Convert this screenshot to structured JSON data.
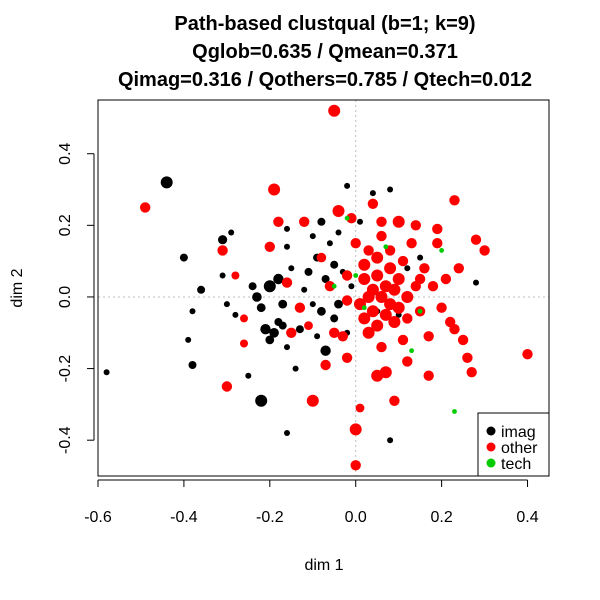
{
  "chart_data": {
    "type": "scatter",
    "title_lines": [
      "Path-based clustqual (b=1; k=9)",
      "Qglob=0.635 / Qmean=0.371",
      "Qimag=0.316 / Qothers=0.785 / Qtech=0.012"
    ],
    "xlabel": "dim 1",
    "ylabel": "dim 2",
    "xlim": [
      -0.6,
      0.45
    ],
    "ylim": [
      -0.5,
      0.55
    ],
    "x_ticks": [
      -0.6,
      -0.4,
      -0.2,
      0.0,
      0.2,
      0.4
    ],
    "x_tick_labels": [
      "-0.6",
      "-0.4",
      "-0.2",
      "0.0",
      "0.2",
      "0.4"
    ],
    "y_ticks": [
      -0.4,
      -0.2,
      0.0,
      0.2,
      0.4
    ],
    "y_tick_labels": [
      "-0.4",
      "-0.2",
      "0.0",
      "0.2",
      "0.4"
    ],
    "reference_lines": {
      "x": 0,
      "y": 0,
      "style": "dotted",
      "color": "#bdbdbd"
    },
    "legend_position": "bottom-right",
    "series": [
      {
        "name": "imag",
        "color": "#000000",
        "points": [
          [
            -0.44,
            0.32,
            3
          ],
          [
            -0.58,
            -0.21,
            1.5
          ],
          [
            -0.4,
            0.11,
            2
          ],
          [
            -0.38,
            -0.04,
            1.5
          ],
          [
            -0.36,
            0.02,
            2
          ],
          [
            -0.39,
            -0.12,
            1.5
          ],
          [
            -0.38,
            -0.19,
            2
          ],
          [
            -0.31,
            0.16,
            2.3
          ],
          [
            -0.29,
            0.18,
            1.5
          ],
          [
            -0.31,
            0.06,
            1.5
          ],
          [
            -0.3,
            -0.02,
            1.5
          ],
          [
            -0.28,
            -0.05,
            1.5
          ],
          [
            -0.25,
            -0.22,
            1.5
          ],
          [
            -0.24,
            0.03,
            2
          ],
          [
            -0.23,
            0.0,
            2.4
          ],
          [
            -0.22,
            -0.03,
            2.2
          ],
          [
            -0.21,
            -0.09,
            2.6
          ],
          [
            -0.2,
            -0.12,
            2.2
          ],
          [
            -0.2,
            0.03,
            3
          ],
          [
            -0.19,
            -0.1,
            2.4
          ],
          [
            -0.18,
            -0.07,
            2
          ],
          [
            -0.18,
            0.05,
            2.6
          ],
          [
            -0.17,
            -0.08,
            2
          ],
          [
            -0.17,
            -0.02,
            2.2
          ],
          [
            -0.16,
            -0.14,
            1.5
          ],
          [
            -0.16,
            0.19,
            1.5
          ],
          [
            -0.15,
            0.08,
            1.5
          ],
          [
            -0.14,
            -0.2,
            1.5
          ],
          [
            -0.13,
            -0.09,
            2
          ],
          [
            -0.12,
            0.02,
            1.5
          ],
          [
            -0.11,
            0.07,
            2
          ],
          [
            -0.1,
            0.17,
            1.5
          ],
          [
            -0.1,
            -0.02,
            1.5
          ],
          [
            -0.09,
            0.11,
            2
          ],
          [
            -0.09,
            -0.11,
            1.5
          ],
          [
            -0.08,
            0.21,
            2
          ],
          [
            -0.08,
            -0.04,
            2.2
          ],
          [
            -0.07,
            0.05,
            2
          ],
          [
            -0.07,
            -0.15,
            2.6
          ],
          [
            -0.06,
            0.15,
            1.5
          ],
          [
            -0.05,
            -0.06,
            2
          ],
          [
            -0.05,
            0.09,
            2
          ],
          [
            -0.04,
            -0.02,
            2.2
          ],
          [
            -0.04,
            0.18,
            1.5
          ],
          [
            -0.03,
            0.07,
            1.5
          ],
          [
            -0.02,
            0.31,
            1.5
          ],
          [
            -0.02,
            -0.1,
            1.5
          ],
          [
            -0.01,
            0.03,
            1.5
          ],
          [
            0.01,
            0.21,
            1.5
          ],
          [
            0.04,
            0.29,
            1.5
          ],
          [
            0.05,
            -0.04,
            1.5
          ],
          [
            0.08,
            0.3,
            1.5
          ],
          [
            0.08,
            -0.4,
            1.5
          ],
          [
            0.1,
            -0.05,
            1.5
          ],
          [
            0.12,
            0.08,
            1.5
          ],
          [
            0.15,
            0.11,
            1.5
          ],
          [
            0.28,
            0.04,
            1.5
          ],
          [
            -0.22,
            -0.29,
            3
          ],
          [
            -0.16,
            0.14,
            1.5
          ],
          [
            -0.16,
            -0.38,
            1.5
          ],
          [
            -0.15,
            -0.1,
            2
          ]
        ]
      },
      {
        "name": "other",
        "color": "#ff0000",
        "points": [
          [
            -0.05,
            0.52,
            3
          ],
          [
            -0.49,
            0.25,
            2.6
          ],
          [
            -0.31,
            0.13,
            2.6
          ],
          [
            -0.3,
            -0.25,
            2.6
          ],
          [
            -0.28,
            0.06,
            2
          ],
          [
            -0.26,
            -0.06,
            2
          ],
          [
            -0.26,
            -0.13,
            2
          ],
          [
            -0.19,
            0.3,
            3
          ],
          [
            -0.2,
            0.14,
            2.6
          ],
          [
            -0.18,
            0.21,
            2.6
          ],
          [
            -0.16,
            0.04,
            2.6
          ],
          [
            -0.15,
            -0.1,
            2.6
          ],
          [
            -0.13,
            -0.03,
            2.6
          ],
          [
            -0.12,
            0.21,
            2.6
          ],
          [
            -0.11,
            -0.08,
            2.2
          ],
          [
            -0.1,
            -0.29,
            3
          ],
          [
            -0.08,
            0.11,
            2.4
          ],
          [
            -0.07,
            -0.19,
            2.6
          ],
          [
            -0.06,
            0.03,
            2.6
          ],
          [
            -0.05,
            -0.1,
            2.6
          ],
          [
            -0.04,
            0.24,
            3
          ],
          [
            -0.03,
            -0.11,
            2.6
          ],
          [
            -0.02,
            -0.17,
            2.6
          ],
          [
            -0.02,
            0.06,
            2.6
          ],
          [
            -0.01,
            0.22,
            2.6
          ],
          [
            0.0,
            -0.37,
            3
          ],
          [
            0.0,
            -0.47,
            2.6
          ],
          [
            0.0,
            0.15,
            2.6
          ],
          [
            0.01,
            -0.02,
            3
          ],
          [
            0.02,
            0.05,
            3
          ],
          [
            0.02,
            0.09,
            3
          ],
          [
            0.02,
            -0.06,
            3
          ],
          [
            0.03,
            0.0,
            3
          ],
          [
            0.03,
            -0.1,
            3
          ],
          [
            0.03,
            0.13,
            2.6
          ],
          [
            0.04,
            0.02,
            3
          ],
          [
            0.04,
            -0.04,
            3
          ],
          [
            0.05,
            0.06,
            3
          ],
          [
            0.05,
            -0.08,
            3
          ],
          [
            0.05,
            0.11,
            3
          ],
          [
            0.06,
            0.0,
            3
          ],
          [
            0.06,
            -0.14,
            2.6
          ],
          [
            0.06,
            0.17,
            2.6
          ],
          [
            0.07,
            0.03,
            3
          ],
          [
            0.07,
            -0.05,
            3
          ],
          [
            0.07,
            -0.21,
            3
          ],
          [
            0.08,
            0.08,
            3
          ],
          [
            0.08,
            -0.02,
            3
          ],
          [
            0.08,
            0.13,
            2.6
          ],
          [
            0.09,
            0.02,
            3
          ],
          [
            0.09,
            -0.07,
            3
          ],
          [
            0.1,
            0.05,
            3
          ],
          [
            0.1,
            -0.03,
            3
          ],
          [
            0.1,
            0.21,
            3
          ],
          [
            0.11,
            0.1,
            2.6
          ],
          [
            0.11,
            -0.12,
            2.6
          ],
          [
            0.12,
            0.0,
            3
          ],
          [
            0.12,
            -0.06,
            2.6
          ],
          [
            0.13,
            0.15,
            2.6
          ],
          [
            0.14,
            0.03,
            2.6
          ],
          [
            0.14,
            0.2,
            2.6
          ],
          [
            0.15,
            -0.04,
            2.6
          ],
          [
            0.16,
            0.08,
            2.6
          ],
          [
            0.17,
            -0.11,
            2.6
          ],
          [
            0.18,
            0.03,
            2.6
          ],
          [
            0.19,
            0.15,
            2.6
          ],
          [
            0.2,
            -0.03,
            2.6
          ],
          [
            0.21,
            0.05,
            2.6
          ],
          [
            0.22,
            -0.07,
            2.6
          ],
          [
            0.23,
            -0.09,
            2.6
          ],
          [
            0.24,
            0.08,
            2.6
          ],
          [
            0.25,
            -0.12,
            2.6
          ],
          [
            0.26,
            -0.17,
            2.6
          ],
          [
            0.27,
            -0.21,
            2.6
          ],
          [
            0.28,
            0.16,
            2.6
          ],
          [
            0.3,
            0.13,
            2.6
          ],
          [
            0.23,
            0.27,
            2.6
          ],
          [
            0.09,
            -0.29,
            2.6
          ],
          [
            0.17,
            -0.22,
            2.6
          ],
          [
            0.01,
            -0.31,
            2.2
          ],
          [
            0.4,
            -0.16,
            2.6
          ],
          [
            0.05,
            -0.22,
            3
          ],
          [
            0.12,
            -0.18,
            2.6
          ],
          [
            -0.02,
            -0.01,
            2.6
          ],
          [
            0.06,
            0.21,
            2.6
          ],
          [
            0.19,
            0.19,
            2.6
          ],
          [
            0.15,
            0.05,
            2.6
          ],
          [
            0.04,
            0.26,
            2.6
          ]
        ]
      },
      {
        "name": "tech",
        "color": "#00cc00",
        "points": [
          [
            -0.02,
            0.22,
            1.2
          ],
          [
            -0.05,
            0.03,
            1.2
          ],
          [
            0.0,
            0.06,
            1.2
          ],
          [
            0.02,
            -0.03,
            1.2
          ],
          [
            0.07,
            0.14,
            1.2
          ],
          [
            0.13,
            -0.15,
            1.2
          ],
          [
            0.15,
            -0.04,
            1.2
          ],
          [
            0.2,
            0.13,
            1.2
          ],
          [
            0.23,
            -0.32,
            1.2
          ]
        ]
      }
    ]
  }
}
